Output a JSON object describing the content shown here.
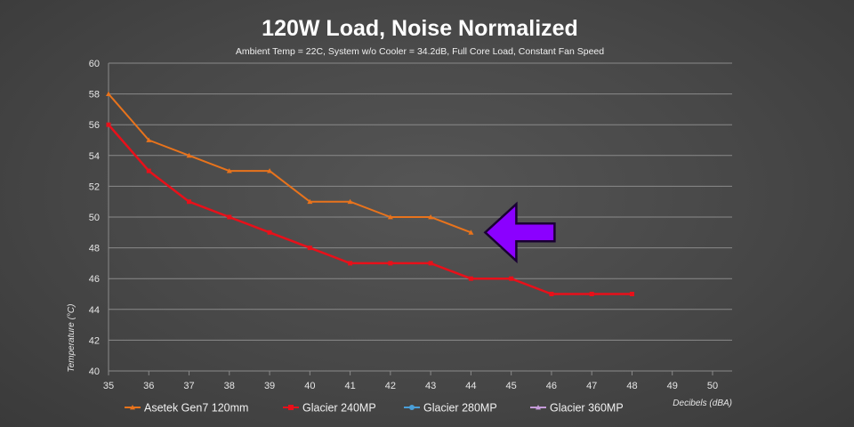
{
  "chart_data": {
    "type": "line",
    "title": "120W Load, Noise Normalized",
    "subtitle": "Ambient Temp = 22C, System w/o Cooler = 34.2dB, Full Core Load, Constant Fan Speed",
    "xlabel": "Decibels (dBA)",
    "ylabel": "Temperature (°C)",
    "xlim": [
      35,
      50
    ],
    "ylim": [
      40,
      60
    ],
    "x_ticks": [
      "35",
      "36",
      "37",
      "38",
      "39",
      "40",
      "41",
      "42",
      "43",
      "44",
      "45",
      "46",
      "47",
      "48",
      "49",
      "50"
    ],
    "y_ticks": [
      "40",
      "42",
      "44",
      "46",
      "48",
      "50",
      "52",
      "54",
      "56",
      "58",
      "60"
    ],
    "grid": true,
    "legend_position": "bottom",
    "series": [
      {
        "name": "Asetek Gen7 120mm",
        "color": "#e8731c",
        "marker": "triangle",
        "x": [
          35,
          36,
          37,
          38,
          39,
          40,
          41,
          42,
          43,
          44
        ],
        "y": [
          58,
          55,
          54,
          53,
          53,
          51,
          51,
          50,
          50,
          49
        ]
      },
      {
        "name": "Glacier 240MP",
        "color": "#e8101a",
        "marker": "square",
        "x": [
          35,
          36,
          37,
          38,
          39,
          40,
          41,
          42,
          43,
          44,
          45,
          46,
          47,
          48
        ],
        "y": [
          56,
          53,
          51,
          50,
          49,
          48,
          47,
          47,
          47,
          46,
          46,
          45,
          45,
          45
        ]
      },
      {
        "name": "Glacier 280MP",
        "color": "#4a9fd8",
        "marker": "circle",
        "x": [],
        "y": []
      },
      {
        "name": "Glacier 360MP",
        "color": "#c59bd8",
        "marker": "triangle",
        "x": [],
        "y": []
      }
    ],
    "annotations": [
      {
        "type": "arrow",
        "direction": "left",
        "color": "#8b00ff",
        "outline": "#1a0033",
        "target_x": 44,
        "target_y": 49
      }
    ]
  }
}
